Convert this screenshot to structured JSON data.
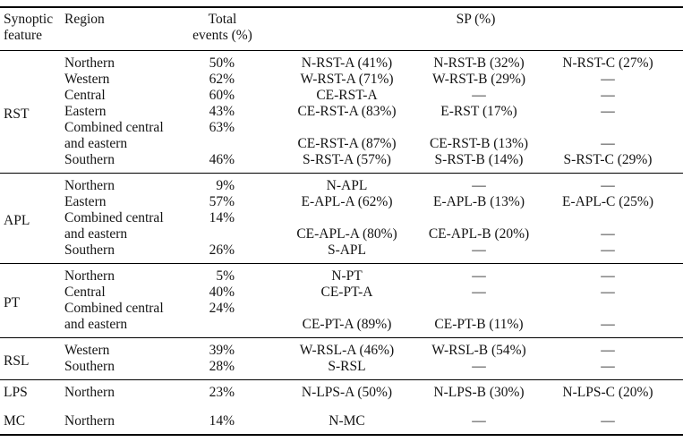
{
  "table": {
    "header": {
      "feature": "Synoptic feature",
      "region": "Region",
      "total": "Total\nevents (%)",
      "sp": "SP (%)"
    },
    "sections": [
      {
        "feature": "RST",
        "rule_above": true,
        "rows": [
          {
            "region": "Northern",
            "total": "50%",
            "sp": [
              "N-RST-A (41%)",
              "N-RST-B (32%)",
              "N-RST-C (27%)"
            ]
          },
          {
            "region": "Western",
            "total": "62%",
            "sp": [
              "W-RST-A (71%)",
              "W-RST-B (29%)",
              "—"
            ]
          },
          {
            "region": "Central",
            "total": "60%",
            "sp": [
              "CE-RST-A",
              "—",
              "—"
            ]
          },
          {
            "region": "Eastern",
            "total": "43%",
            "sp": [
              "CE-RST-A (83%)",
              "E-RST (17%)",
              "—"
            ]
          },
          {
            "region": "Combined central",
            "total": "63%",
            "sp": [
              "",
              "",
              ""
            ]
          },
          {
            "region": "and eastern",
            "total": "",
            "sp": [
              "CE-RST-A (87%)",
              "CE-RST-B (13%)",
              "—"
            ]
          },
          {
            "region": "Southern",
            "total": "46%",
            "sp": [
              "S-RST-A (57%)",
              "S-RST-B (14%)",
              "S-RST-C (29%)"
            ]
          }
        ]
      },
      {
        "feature": "APL",
        "rule_above": true,
        "rows": [
          {
            "region": "Northern",
            "total": "9%",
            "sp": [
              "N-APL",
              "—",
              "—"
            ]
          },
          {
            "region": "Eastern",
            "total": "57%",
            "sp": [
              "E-APL-A (62%)",
              "E-APL-B (13%)",
              "E-APL-C (25%)"
            ]
          },
          {
            "region": "Combined central",
            "total": "14%",
            "sp": [
              "",
              "",
              ""
            ]
          },
          {
            "region": "and eastern",
            "total": "",
            "sp": [
              "CE-APL-A (80%)",
              "CE-APL-B (20%)",
              "—"
            ]
          },
          {
            "region": "Southern",
            "total": "26%",
            "sp": [
              "S-APL",
              "—",
              "—"
            ]
          }
        ]
      },
      {
        "feature": "PT",
        "rule_above": true,
        "rows": [
          {
            "region": "Northern",
            "total": "5%",
            "sp": [
              "N-PT",
              "—",
              "—"
            ]
          },
          {
            "region": "Central",
            "total": "40%",
            "sp": [
              "CE-PT-A",
              "—",
              "—"
            ]
          },
          {
            "region": "Combined central",
            "total": "24%",
            "sp": [
              "",
              "",
              ""
            ]
          },
          {
            "region": "and eastern",
            "total": "",
            "sp": [
              "CE-PT-A (89%)",
              "CE-PT-B (11%)",
              "—"
            ]
          }
        ]
      },
      {
        "feature": "RSL",
        "rule_above": true,
        "rows": [
          {
            "region": "Western",
            "total": "39%",
            "sp": [
              "W-RSL-A (46%)",
              "W-RSL-B (54%)",
              "—"
            ]
          },
          {
            "region": "Southern",
            "total": "28%",
            "sp": [
              "S-RSL",
              "—",
              "—"
            ]
          }
        ]
      },
      {
        "feature": "LPS",
        "rule_above": true,
        "rows": [
          {
            "region": "Northern",
            "total": "23%",
            "sp": [
              "N-LPS-A (50%)",
              "N-LPS-B (30%)",
              "N-LPS-C (20%)"
            ]
          }
        ]
      },
      {
        "feature": "MC",
        "rule_above": false,
        "rows": [
          {
            "region": "Northern",
            "total": "14%",
            "sp": [
              "N-MC",
              "—",
              "—"
            ]
          }
        ]
      }
    ]
  }
}
